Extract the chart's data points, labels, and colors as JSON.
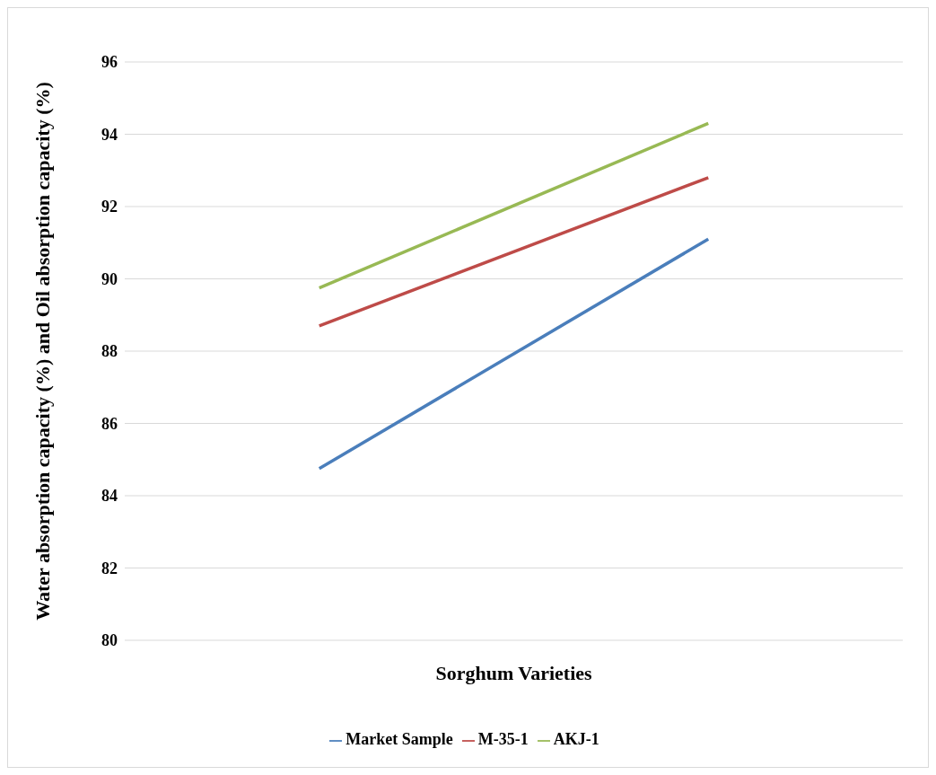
{
  "chart_data": {
    "type": "line",
    "xlabel": "Sorghum Varieties",
    "ylabel": "Water absorption capacity (%)  and Oil absorption capacity (%)",
    "categories": [
      null,
      null
    ],
    "series": [
      {
        "name": "Market Sample",
        "color": "#4a7ebb",
        "values": [
          84.75,
          91.1
        ]
      },
      {
        "name": "M-35-1",
        "color": "#be4b48",
        "values": [
          88.7,
          92.8
        ]
      },
      {
        "name": "AKJ-1",
        "color": "#98b954",
        "values": [
          89.75,
          94.3
        ]
      }
    ],
    "ylim": [
      80,
      96
    ],
    "yticks": [
      80,
      82,
      84,
      86,
      88,
      90,
      92,
      94,
      96
    ],
    "grid": "y",
    "legend": "bottom",
    "marker": "none",
    "line_style": "solid"
  }
}
